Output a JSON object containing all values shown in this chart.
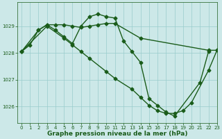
{
  "xlabel": "Graphe pression niveau de la mer (hPa)",
  "background_color": "#cce8e8",
  "plot_bg_color": "#cce8e8",
  "grid_color": "#99cccc",
  "line_color": "#1a5c1a",
  "ylim": [
    1025.4,
    1029.9
  ],
  "xlim": [
    -0.5,
    23
  ],
  "yticks": [
    1026,
    1027,
    1028,
    1029
  ],
  "xticks": [
    0,
    1,
    2,
    3,
    4,
    5,
    6,
    7,
    8,
    9,
    10,
    11,
    12,
    13,
    14,
    15,
    16,
    17,
    18,
    19,
    20,
    21,
    22,
    23
  ],
  "series1_x": [
    0,
    1,
    2,
    3,
    4,
    5,
    6,
    7,
    8,
    9,
    10,
    11,
    14,
    22,
    23
  ],
  "series1_y": [
    1028.05,
    1028.3,
    1028.85,
    1029.05,
    1029.05,
    1029.05,
    1029.0,
    1028.95,
    1029.0,
    1029.05,
    1029.1,
    1029.1,
    1028.55,
    1028.1,
    1028.1
  ],
  "series2_x": [
    0,
    2,
    3,
    4,
    5,
    6,
    7,
    8,
    9,
    10,
    11,
    12,
    13,
    14,
    15,
    16,
    17,
    18,
    21,
    22
  ],
  "series2_y": [
    1028.05,
    1028.85,
    1029.05,
    1028.85,
    1028.6,
    1028.35,
    1029.0,
    1029.35,
    1029.45,
    1029.35,
    1029.3,
    1028.45,
    1028.05,
    1027.65,
    1026.3,
    1026.05,
    1025.8,
    1025.65,
    1026.9,
    1028.05
  ],
  "series3_x": [
    0,
    3,
    5,
    6,
    7,
    8,
    10,
    11,
    13,
    14,
    15,
    16,
    17,
    18,
    19,
    20,
    22,
    23
  ],
  "series3_y": [
    1028.05,
    1029.0,
    1028.55,
    1028.3,
    1028.05,
    1027.8,
    1027.3,
    1027.05,
    1026.65,
    1026.35,
    1026.05,
    1025.85,
    1025.75,
    1025.75,
    1025.85,
    1026.15,
    1027.35,
    1028.1
  ],
  "marker": "D",
  "markersize": 2.5,
  "linewidth": 1.0,
  "tick_fontsize": 5.0,
  "xlabel_fontsize": 6.5
}
